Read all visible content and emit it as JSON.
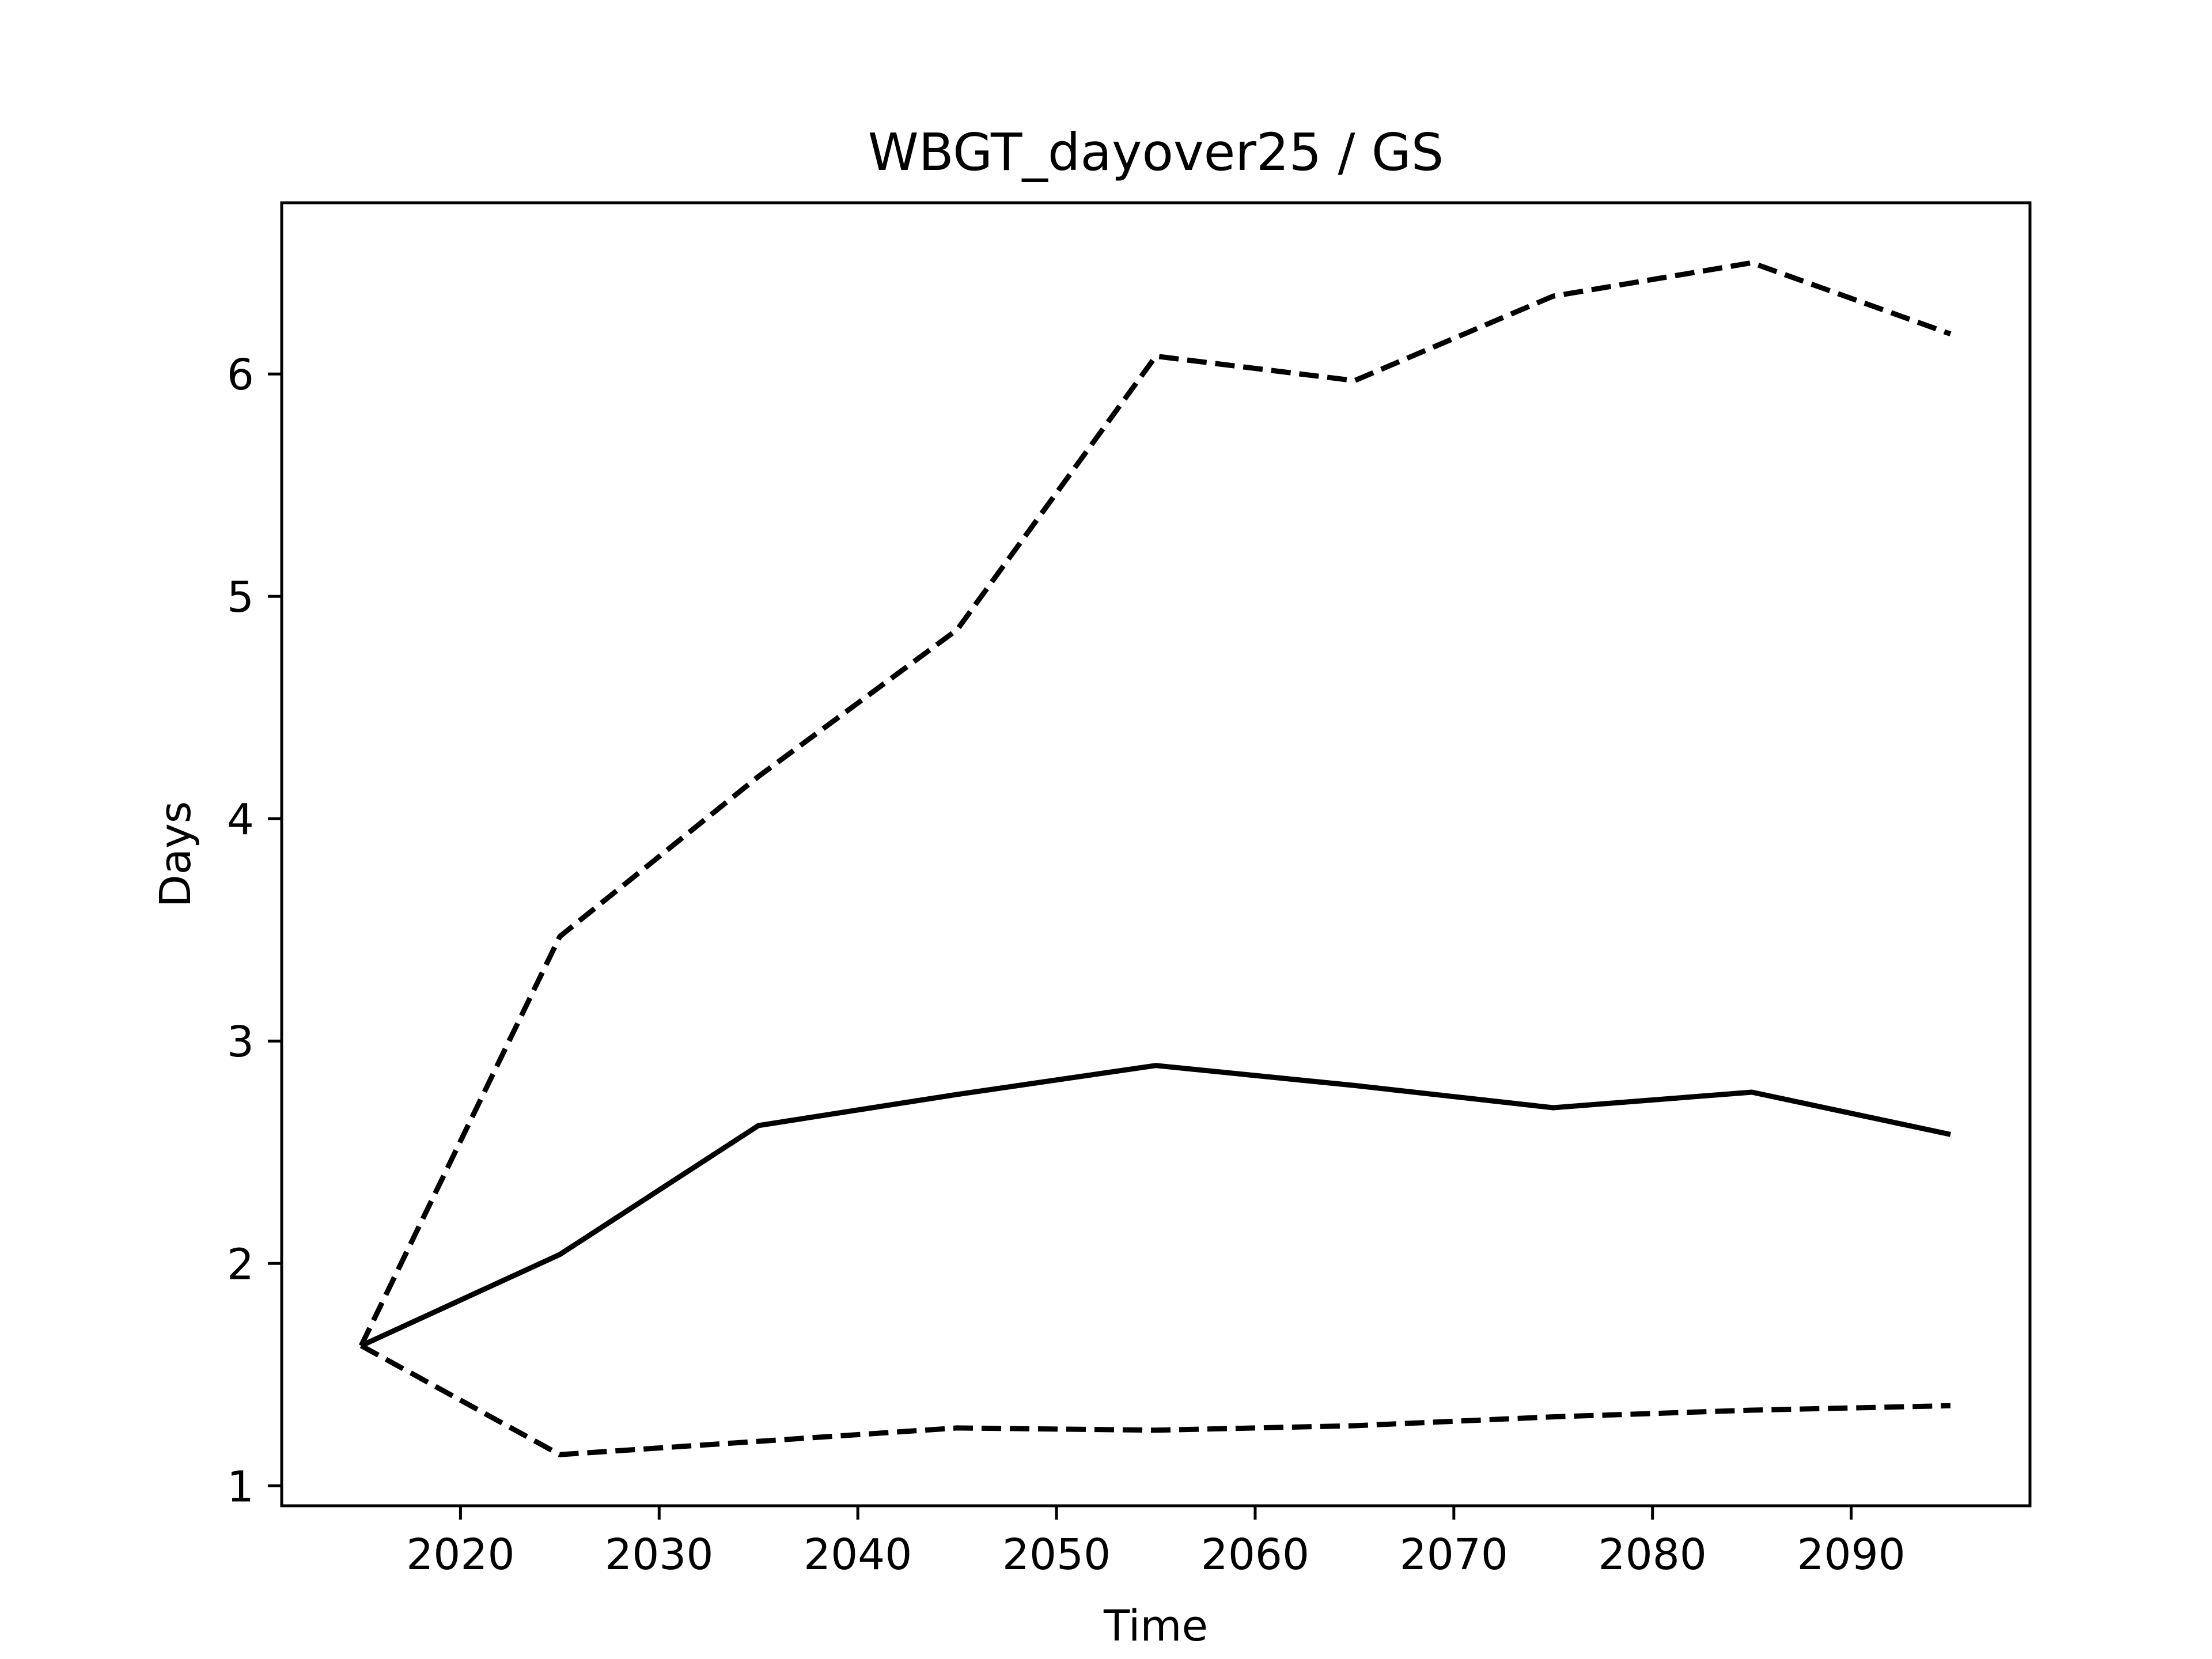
{
  "chart_data": {
    "type": "line",
    "title": "WBGT_dayover25 / GS",
    "xlabel": "Time",
    "ylabel": "Days",
    "xlim": [
      2011,
      2099
    ],
    "ylim": [
      0.91,
      6.77
    ],
    "xticks": [
      2020,
      2030,
      2040,
      2050,
      2060,
      2070,
      2080,
      2090
    ],
    "yticks": [
      1,
      2,
      3,
      4,
      5,
      6
    ],
    "x": [
      2015,
      2025,
      2035,
      2045,
      2055,
      2065,
      2075,
      2085,
      2095
    ],
    "grid": false,
    "legend": "none",
    "series": [
      {
        "style": "solid",
        "color": "#000000",
        "values": [
          1.63,
          2.04,
          2.62,
          2.76,
          2.89,
          2.8,
          2.7,
          2.77,
          2.58
        ]
      },
      {
        "style": "dashed",
        "color": "#000000",
        "values": [
          1.63,
          3.47,
          4.19,
          4.85,
          6.08,
          5.97,
          6.35,
          6.5,
          6.18
        ]
      },
      {
        "style": "dashed",
        "color": "#000000",
        "values": [
          1.63,
          1.14,
          1.2,
          1.26,
          1.25,
          1.27,
          1.31,
          1.34,
          1.36
        ]
      }
    ]
  }
}
